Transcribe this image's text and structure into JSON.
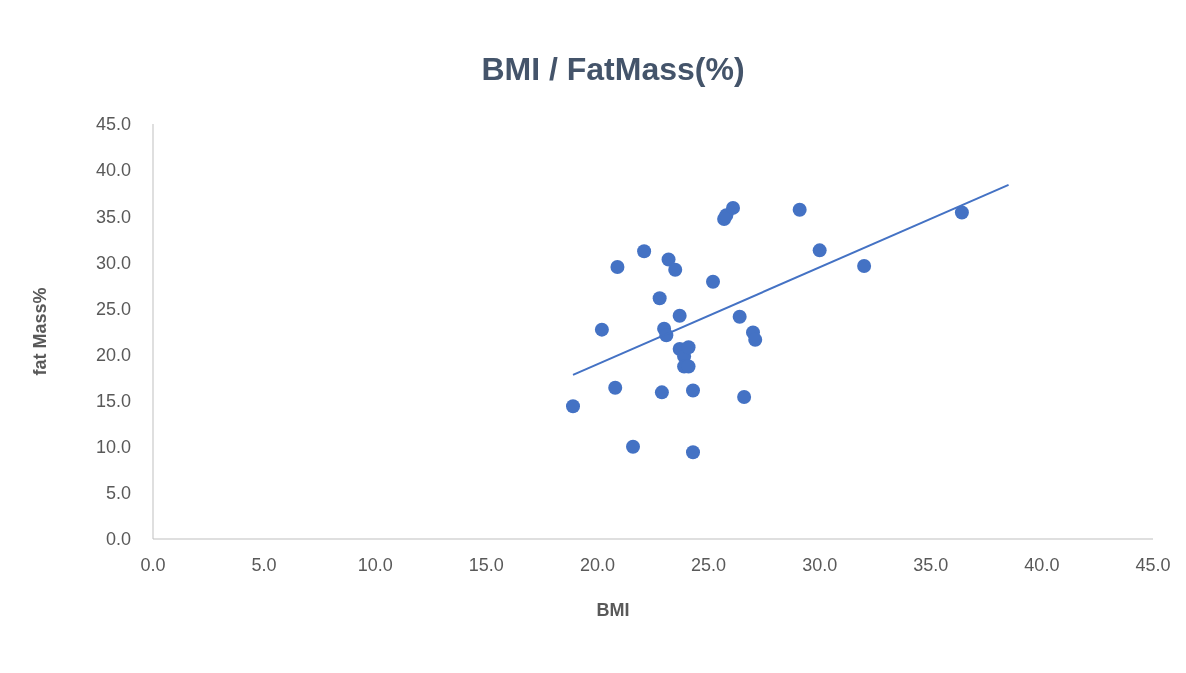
{
  "chart_data": {
    "type": "scatter",
    "title": "BMI / FatMass(%)",
    "xlabel": "BMI",
    "ylabel": "fat Mass%",
    "xlim": [
      0,
      45
    ],
    "xticks": [
      {
        "value": 0,
        "label": "0.0"
      },
      {
        "value": 5,
        "label": "5.0"
      },
      {
        "value": 10,
        "label": "10.0"
      },
      {
        "value": 15,
        "label": "15.0"
      },
      {
        "value": 20,
        "label": "20.0"
      },
      {
        "value": 25,
        "label": "25.0"
      },
      {
        "value": 30,
        "label": "30.0"
      },
      {
        "value": 35,
        "label": "35.0"
      },
      {
        "value": 40,
        "label": "40.0"
      },
      {
        "value": 45,
        "label": "45.0"
      }
    ],
    "ylim": [
      0,
      45
    ],
    "yticks": [
      {
        "value": 0,
        "label": "0.0"
      },
      {
        "value": 5,
        "label": "5.0"
      },
      {
        "value": 10,
        "label": "10.0"
      },
      {
        "value": 15,
        "label": "15.0"
      },
      {
        "value": 20,
        "label": "20.0"
      },
      {
        "value": 25,
        "label": "25.0"
      },
      {
        "value": 30,
        "label": "30.0"
      },
      {
        "value": 35,
        "label": "35.0"
      },
      {
        "value": 40,
        "label": "40.0"
      },
      {
        "value": 45,
        "label": "45.0"
      }
    ],
    "series": [
      {
        "marker": "circle",
        "color": "#4472c4",
        "x": [
          18.9,
          20.2,
          20.9,
          20.8,
          21.6,
          22.1,
          22.8,
          22.9,
          23.0,
          23.1,
          23.2,
          23.5,
          23.7,
          23.7,
          23.9,
          24.1,
          23.9,
          24.1,
          24.3,
          24.3,
          25.2,
          25.7,
          25.8,
          26.1,
          26.4,
          26.6,
          27.0,
          27.1,
          29.1,
          30.0,
          32.0,
          36.4
        ],
        "values": [
          14.4,
          22.7,
          29.5,
          16.4,
          10.0,
          31.2,
          26.1,
          15.9,
          22.8,
          22.1,
          30.3,
          29.2,
          24.2,
          20.6,
          19.8,
          20.8,
          18.7,
          18.7,
          16.1,
          9.4,
          27.9,
          34.7,
          35.1,
          35.9,
          24.1,
          15.4,
          22.4,
          21.6,
          35.7,
          31.3,
          29.6,
          35.4
        ]
      },
      {
        "type": "line",
        "color": "#4472c4",
        "x": [
          18.9,
          38.5
        ],
        "values": [
          17.8,
          38.4
        ]
      }
    ]
  }
}
